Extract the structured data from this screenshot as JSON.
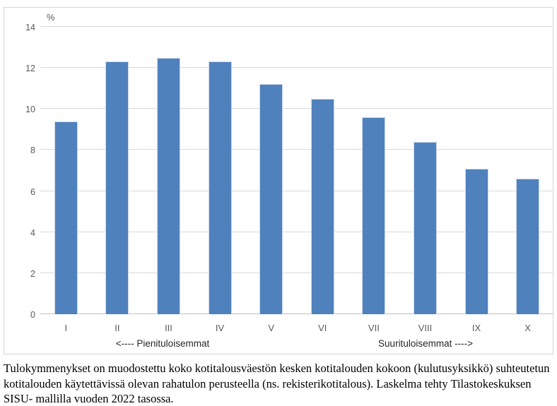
{
  "chart_data": {
    "type": "bar",
    "title": "",
    "unit_label": "%",
    "categories": [
      "I",
      "II",
      "III",
      "IV",
      "V",
      "VI",
      "VII",
      "VIII",
      "IX",
      "X"
    ],
    "values": [
      9.4,
      12.3,
      12.5,
      12.3,
      11.2,
      10.5,
      9.6,
      8.4,
      7.1,
      6.6
    ],
    "ylim": [
      0,
      14
    ],
    "yticks": [
      0,
      2,
      4,
      6,
      8,
      10,
      12,
      14
    ],
    "grid": true,
    "legend": null,
    "xlabel_left": "<---- Pienituloisemmat",
    "xlabel_right": "Suurituloisemmat ---->",
    "bar_color": "#4f81bd",
    "bar_border_color": "#ccd9ec",
    "gridline_color": "#d9d9d9",
    "tick_text_color": "#595959"
  },
  "caption": {
    "lines": [
      "Tulokymmenykset on muodostettu koko kotitalousväestön kesken kotitalouden kokoon (kulutusyksikkö) suhteutetun",
      "kotitalouden käytettävissä olevan rahatulon perusteella (ns. rekisterikotitalous). Laskelma tehty Tilastokeskuksen SISU-",
      "mallilla vuoden 2022 tasossa."
    ]
  }
}
